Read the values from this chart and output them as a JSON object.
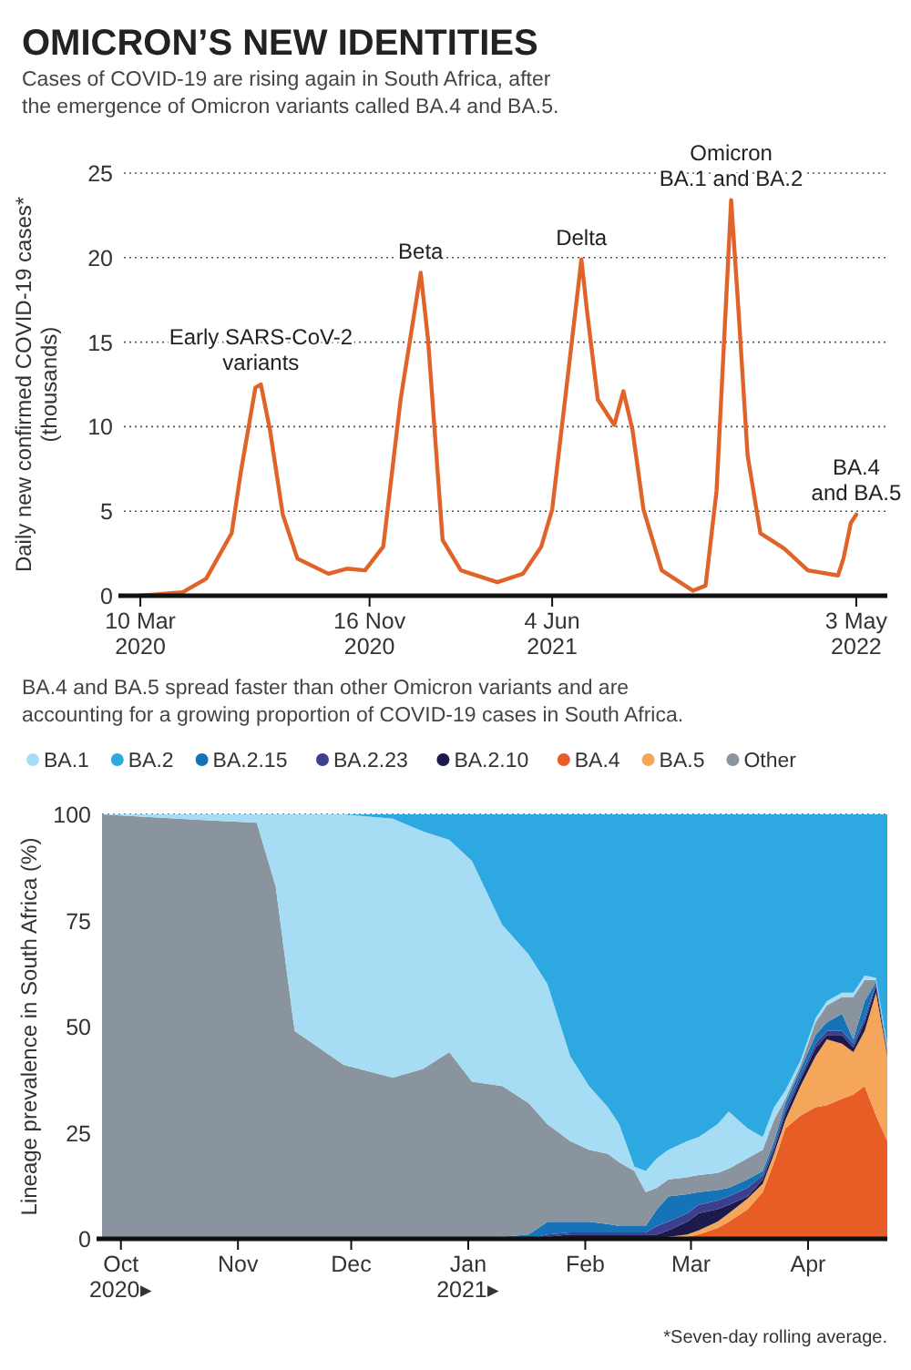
{
  "chart_data": [
    {
      "type": "line",
      "title": "OMICRON’S NEW IDENTITIES",
      "subtitle": "Cases of COVID-19 are rising again in South Africa, after the emergence of Omicron variants called BA.4 and BA.5.",
      "ylabel": "Daily new confirmed COVID-19 cases* (thousands)",
      "x": [
        "2020-03-10",
        "2020-04-25",
        "2020-05-21",
        "2020-06-18",
        "2020-06-28",
        "2020-07-14",
        "2020-07-20",
        "2020-07-30",
        "2020-08-13",
        "2020-08-29",
        "2020-10-02",
        "2020-10-22",
        "2020-11-11",
        "2020-12-01",
        "2020-12-20",
        "2021-01-11",
        "2021-01-19",
        "2021-02-04",
        "2021-02-24",
        "2021-04-05",
        "2021-05-03",
        "2021-05-23",
        "2021-06-04",
        "2021-06-22",
        "2021-07-06",
        "2021-07-12",
        "2021-07-24",
        "2021-08-11",
        "2021-08-21",
        "2021-08-31",
        "2021-09-12",
        "2021-10-02",
        "2021-11-05",
        "2021-11-19",
        "2021-12-01",
        "2021-12-17",
        "2021-12-25",
        "2022-01-04",
        "2022-01-18",
        "2022-02-13",
        "2022-03-11",
        "2022-04-13",
        "2022-04-19",
        "2022-04-27",
        "2022-05-03"
      ],
      "values": [
        0,
        0.2,
        1,
        3.7,
        7.3,
        12.3,
        12.5,
        9.8,
        4.8,
        2.2,
        1.3,
        1.6,
        1.5,
        2.9,
        11.6,
        19.1,
        15.2,
        3.3,
        1.5,
        0.8,
        1.3,
        2.9,
        5.1,
        13.4,
        19.9,
        16.9,
        11.6,
        10.1,
        12.1,
        9.8,
        5.1,
        1.5,
        0.3,
        0.6,
        6.2,
        23.4,
        16.9,
        8.3,
        3.7,
        2.8,
        1.5,
        1.2,
        2.2,
        4.3,
        4.8
      ],
      "color": "#e0642a",
      "xlim": [
        "2020-02-21",
        "2022-06-06"
      ],
      "ylim": [
        0,
        25
      ],
      "xticks": [
        {
          "value": "2020-03-10",
          "label": "10 Mar 2020"
        },
        {
          "value": "2020-11-16",
          "label": "16 Nov 2020"
        },
        {
          "value": "2021-06-04",
          "label": "4 Jun 2021"
        },
        {
          "value": "2022-05-03",
          "label": "3 May 2022"
        }
      ],
      "yticks": [
        0,
        5,
        10,
        15,
        20,
        25
      ],
      "grid": "y",
      "annotations": [
        {
          "text": "Early SARS-CoV-2\nvariants",
          "x": "2020-07-20",
          "y": 12.5
        },
        {
          "text": "Beta",
          "x": "2021-01-11",
          "y": 19.1
        },
        {
          "text": "Delta",
          "x": "2021-07-06",
          "y": 19.9
        },
        {
          "text": "Omicron\nBA.1 and BA.2",
          "x": "2021-12-17",
          "y": 23.4
        },
        {
          "text": "BA.4\nand BA.5",
          "x": "2022-05-03",
          "y": 4.8
        }
      ]
    },
    {
      "type": "area",
      "stacked": true,
      "subtitle": "BA.4 and BA.5 spread faster than other Omicron variants and are accounting for a growing proportion of COVID-19 cases in South Africa.",
      "ylabel": "Lineage prevalence in South Africa (%)",
      "x": [
        "2020-09-26",
        "2020-10-16",
        "2020-11-06",
        "2020-11-11",
        "2020-11-16",
        "2020-11-29",
        "2020-12-12",
        "2020-12-20",
        "2020-12-27",
        "2021-01-02",
        "2021-01-10",
        "2021-01-17",
        "2021-01-22",
        "2021-01-28",
        "2021-02-02",
        "2021-02-07",
        "2021-02-10",
        "2021-02-14",
        "2021-02-17",
        "2021-02-20",
        "2021-02-23",
        "2021-02-28",
        "2021-03-03",
        "2021-03-08",
        "2021-03-11",
        "2021-03-16",
        "2021-03-20",
        "2021-03-23",
        "2021-03-26",
        "2021-03-30",
        "2021-04-03",
        "2021-04-06",
        "2021-04-10",
        "2021-04-13",
        "2021-04-16",
        "2021-04-19",
        "2021-04-22"
      ],
      "series": [
        {
          "name": "BA.4",
          "color": "#e85d26",
          "values": [
            0,
            0,
            0,
            0,
            0,
            0,
            0,
            0,
            0,
            0,
            0,
            0,
            0,
            0,
            0,
            0,
            0,
            0,
            0,
            0,
            0,
            0.5,
            1,
            2.5,
            4,
            7,
            11,
            18,
            26,
            29,
            31,
            31.5,
            33,
            34,
            36,
            29,
            23
          ]
        },
        {
          "name": "BA.5",
          "color": "#f5a65b",
          "values": [
            0,
            0,
            0,
            0,
            0,
            0,
            0,
            0,
            0,
            0,
            0,
            0,
            0,
            0,
            0,
            0,
            0,
            0,
            0,
            0,
            0.5,
            0.5,
            1,
            1.5,
            2,
            2.5,
            2,
            2,
            2,
            7,
            12,
            15.5,
            13,
            10,
            13,
            29,
            20
          ]
        },
        {
          "name": "BA.2.10",
          "color": "#1b1a4a",
          "values": [
            0,
            0,
            0,
            0,
            0,
            0,
            0,
            0,
            0,
            0,
            0,
            0,
            0.5,
            1,
            1,
            1,
            1,
            1,
            1,
            1,
            1.5,
            3,
            4,
            3,
            2,
            0.5,
            1,
            1,
            1.5,
            1.5,
            2,
            1,
            2,
            1,
            2,
            1.5,
            0.5
          ]
        },
        {
          "name": "BA.2.23",
          "color": "#3c3f8f",
          "values": [
            0,
            0,
            0,
            0,
            0,
            0,
            0,
            0,
            0,
            0,
            0,
            0,
            0.5,
            0.5,
            0.5,
            0.5,
            0.5,
            0.5,
            0.5,
            2,
            2,
            2,
            2,
            2,
            2,
            2,
            1,
            1,
            1,
            1,
            1,
            1,
            1,
            1,
            1,
            0.5,
            0.5
          ]
        },
        {
          "name": "BA.2.15",
          "color": "#1673b8",
          "values": [
            0,
            0,
            0,
            0,
            0,
            0,
            0,
            0,
            0,
            0,
            0.5,
            1,
            3,
            2.5,
            2.5,
            2,
            1.5,
            1.5,
            1.5,
            4,
            6,
            4.5,
            3,
            2.5,
            2,
            2,
            1,
            1,
            1.5,
            1.5,
            2,
            2,
            4,
            1,
            4,
            0.5,
            0.5
          ]
        },
        {
          "name": "Other",
          "color": "#8a949e",
          "values": [
            100,
            99,
            98,
            83,
            49,
            41,
            38,
            40,
            44,
            37,
            35.5,
            31,
            23,
            19,
            17,
            16.5,
            15,
            13,
            8,
            5,
            4,
            4,
            4,
            4,
            4.5,
            5,
            5,
            5,
            1,
            1,
            3,
            4,
            4,
            10,
            5,
            0.5,
            0.5
          ]
        },
        {
          "name": "BA.1",
          "color": "#a6dcf4",
          "values": [
            0,
            1,
            2,
            17,
            51,
            59,
            61,
            56,
            50,
            52,
            38,
            35,
            33,
            20,
            15,
            11,
            9,
            1,
            5,
            7,
            7,
            8.5,
            9,
            11.5,
            13.5,
            7,
            3,
            3,
            2,
            1,
            1,
            1,
            1,
            1,
            1,
            0.5,
            0.5
          ]
        },
        {
          "name": "BA.2",
          "color": "#2ea8e0",
          "values": [
            0,
            0,
            0,
            0,
            0,
            0,
            1,
            4,
            6,
            11,
            26,
            33,
            40,
            57,
            64,
            69,
            73,
            83,
            84,
            81,
            79,
            77,
            76,
            73,
            70,
            74,
            76,
            69,
            65,
            58,
            48,
            44,
            42,
            42,
            38,
            38.5,
            54.5
          ]
        }
      ],
      "xlim": [
        "2020-09-26",
        "2021-04-22"
      ],
      "ylim": [
        0,
        100
      ],
      "xticks": [
        {
          "value": "2020-10-01",
          "label": "Oct 2020▸"
        },
        {
          "value": "2020-11-01",
          "label": "Nov"
        },
        {
          "value": "2020-12-01",
          "label": "Dec"
        },
        {
          "value": "2021-01-01",
          "label": "Jan 2021▸"
        },
        {
          "value": "2021-02-01",
          "label": "Feb"
        },
        {
          "value": "2021-03-01",
          "label": "Mar"
        },
        {
          "value": "2021-04-01",
          "label": "Apr"
        }
      ],
      "yticks": [
        0,
        25,
        50,
        75,
        100
      ],
      "grid": "y",
      "legend": "top",
      "annotations": [
        "*Seven-day rolling average."
      ]
    }
  ]
}
